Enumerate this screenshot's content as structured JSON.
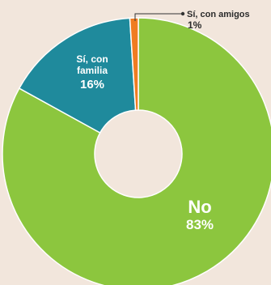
{
  "chart_data": {
    "type": "pie",
    "donut": true,
    "legend": "none",
    "slices": [
      {
        "label": "No",
        "value": 83,
        "value_label": "83%",
        "color": "#8cc63e"
      },
      {
        "label": "Sí, con familia",
        "label_lines": [
          "Sí, con",
          "familia"
        ],
        "value": 16,
        "value_label": "16%",
        "color": "#1f8a9c"
      },
      {
        "label": "Sí, con amigos",
        "value": 1,
        "value_label": "1%",
        "color": "#f07c22"
      }
    ]
  }
}
